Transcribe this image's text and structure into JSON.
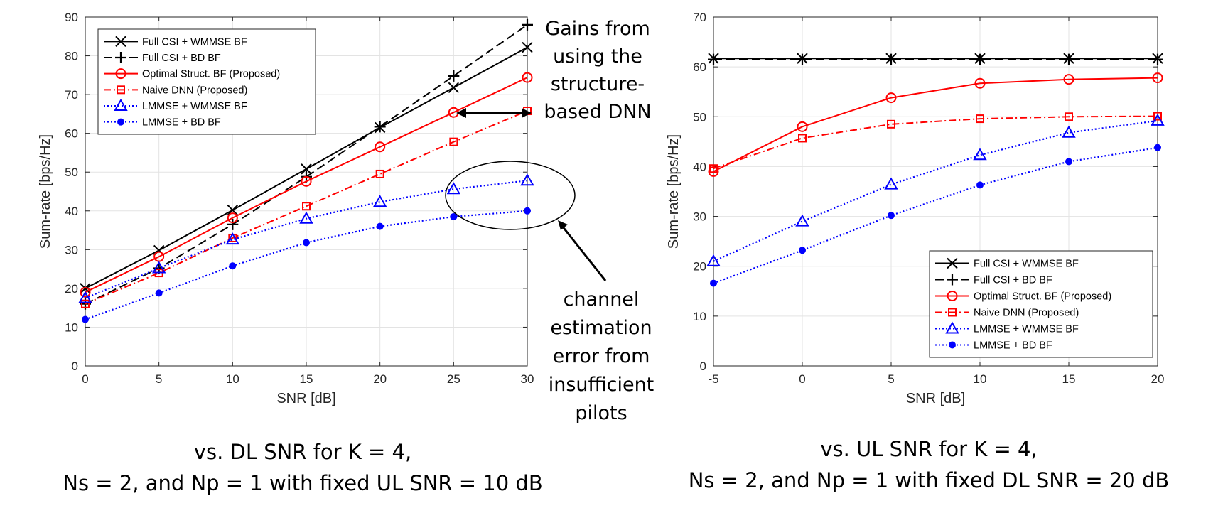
{
  "chart_data": [
    {
      "type": "line",
      "xlabel": "SNR [dB]",
      "ylabel": "Sum-rate [bps/Hz]",
      "xlim": [
        0,
        30
      ],
      "ylim": [
        0,
        90
      ],
      "xticks": [
        "0",
        "5",
        "10",
        "15",
        "20",
        "25",
        "30"
      ],
      "yticks": [
        "0",
        "10",
        "20",
        "30",
        "40",
        "50",
        "60",
        "70",
        "80",
        "90"
      ],
      "grid": true,
      "legend_position": "top-left",
      "x": [
        0,
        5,
        10,
        15,
        20,
        25,
        30
      ],
      "series": [
        {
          "name": "Full CSI + WMMSE BF",
          "color": "#000000",
          "style": "solid",
          "marker": "x",
          "values": [
            20,
            29.8,
            40.2,
            50.8,
            61.5,
            71.8,
            82.2
          ]
        },
        {
          "name": "Full CSI + BD BF",
          "color": "#000000",
          "style": "dashed",
          "marker": "plus",
          "values": [
            16,
            25.2,
            36.5,
            48.8,
            61.7,
            74.8,
            88
          ]
        },
        {
          "name": "Optimal Struct. BF (Proposed)",
          "color": "#ff0000",
          "style": "solid",
          "marker": "circle",
          "values": [
            19,
            28.2,
            38.2,
            47.6,
            56.5,
            65.4,
            74.4
          ]
        },
        {
          "name": "Naive DNN (Proposed)",
          "color": "#ff0000",
          "style": "dashdot",
          "marker": "square",
          "values": [
            16,
            24,
            33,
            41.2,
            49.5,
            57.8,
            65.8
          ]
        },
        {
          "name": "LMMSE + WMMSE BF",
          "color": "#0000ff",
          "style": "dotted",
          "marker": "triangle",
          "values": [
            17.5,
            25.2,
            32.6,
            38,
            42.3,
            45.6,
            47.8
          ]
        },
        {
          "name": "LMMSE + BD BF",
          "color": "#0000ff",
          "style": "dotted",
          "marker": "star",
          "values": [
            12,
            18.8,
            25.8,
            31.8,
            36,
            38.5,
            40
          ]
        }
      ]
    },
    {
      "type": "line",
      "xlabel": "SNR [dB]",
      "ylabel": "Sum-rate [bps/Hz]",
      "xlim": [
        -5,
        20
      ],
      "ylim": [
        0,
        70
      ],
      "xticks": [
        "-5",
        "0",
        "5",
        "10",
        "15",
        "20"
      ],
      "yticks": [
        "0",
        "10",
        "20",
        "30",
        "40",
        "50",
        "60",
        "70"
      ],
      "grid": true,
      "legend_position": "bottom-right",
      "x": [
        -5,
        0,
        5,
        10,
        15,
        20
      ],
      "series": [
        {
          "name": "Full CSI + WMMSE BF",
          "color": "#000000",
          "style": "solid",
          "marker": "x",
          "values": [
            61.7,
            61.7,
            61.7,
            61.7,
            61.7,
            61.7
          ]
        },
        {
          "name": "Full CSI + BD BF",
          "color": "#000000",
          "style": "dashed",
          "marker": "plus",
          "values": [
            61.5,
            61.5,
            61.5,
            61.5,
            61.5,
            61.5
          ]
        },
        {
          "name": "Optimal Struct. BF (Proposed)",
          "color": "#ff0000",
          "style": "solid",
          "marker": "circle",
          "values": [
            39,
            48,
            53.8,
            56.7,
            57.5,
            57.8
          ]
        },
        {
          "name": "Naive DNN (Proposed)",
          "color": "#ff0000",
          "style": "dashdot",
          "marker": "square",
          "values": [
            39.6,
            45.7,
            48.5,
            49.6,
            50,
            50.1
          ]
        },
        {
          "name": "LMMSE + WMMSE BF",
          "color": "#0000ff",
          "style": "dotted",
          "marker": "triangle",
          "values": [
            21,
            29,
            36.4,
            42.3,
            46.8,
            49.2
          ]
        },
        {
          "name": "LMMSE + BD BF",
          "color": "#0000ff",
          "style": "dotted",
          "marker": "star",
          "values": [
            16.6,
            23.2,
            30.2,
            36.3,
            41,
            43.8
          ]
        }
      ]
    }
  ],
  "annotations": {
    "gains": [
      "Gains from",
      "using the",
      "structure-",
      "based DNN"
    ],
    "channel_error": [
      "channel",
      "estimation",
      "error from",
      "insufficient",
      "pilots"
    ]
  },
  "captions": {
    "left": [
      "vs. DL SNR for K = 4,",
      "Ns = 2, and Np = 1 with fixed UL SNR = 10 dB"
    ],
    "right": [
      "vs. UL SNR for K = 4,",
      "Ns = 2, and Np = 1 with fixed DL SNR = 20 dB"
    ]
  }
}
